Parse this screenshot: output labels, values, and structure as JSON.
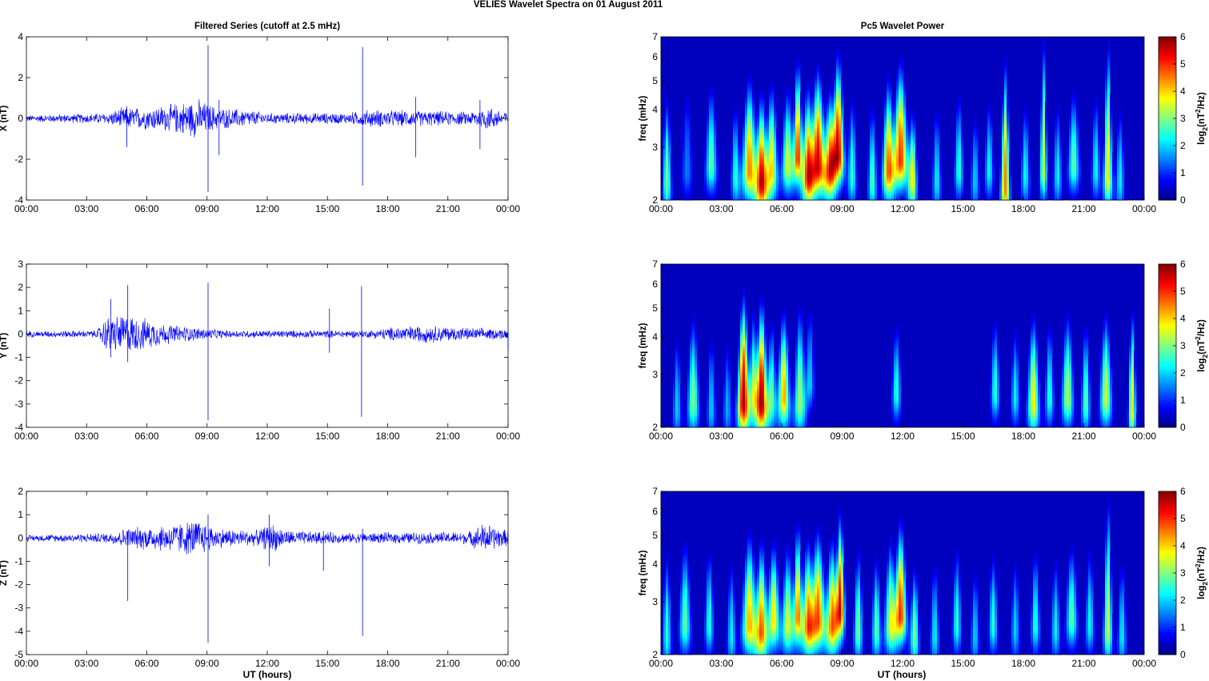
{
  "figure": {
    "title": "VELIES Wavelet Spectra on 01 August    2011",
    "left_title": "Filtered Series (cutoff at 2.5 mHz)",
    "right_title": "Pc5 Wavelet Power",
    "xlabel": "UT (hours)",
    "freq_label": "freq (mHz)",
    "colorbar_label_pre": "log",
    "colorbar_label_sub": "2",
    "colorbar_label_mid": "(nT",
    "colorbar_label_sup": "2",
    "colorbar_label_post": "/Hz)"
  },
  "colors": {
    "trace": "#0000ff",
    "background": "#ffffff",
    "axis": "#000000"
  },
  "chart_data": [
    {
      "type": "line",
      "component": "X",
      "ylabel": "X (nT)",
      "ylim": [
        -4,
        4
      ],
      "yticks": [
        "-4",
        "-2",
        "0",
        "2",
        "4"
      ],
      "xticks": [
        "00:00",
        "03:00",
        "06:00",
        "09:00",
        "12:00",
        "15:00",
        "18:00",
        "21:00",
        "00:00"
      ],
      "xlim_hours": [
        0,
        24
      ],
      "envelope": [
        [
          0,
          0.15
        ],
        [
          4,
          0.25
        ],
        [
          4.8,
          0.5
        ],
        [
          6,
          0.5
        ],
        [
          7,
          0.6
        ],
        [
          8.5,
          0.9
        ],
        [
          9.5,
          0.5
        ],
        [
          11,
          0.4
        ],
        [
          12,
          0.25
        ],
        [
          16,
          0.25
        ],
        [
          17,
          0.4
        ],
        [
          20,
          0.35
        ],
        [
          22,
          0.3
        ],
        [
          23,
          0.55
        ],
        [
          24,
          0.3
        ]
      ],
      "spikes": [
        [
          9.05,
          3.6,
          -3.6
        ],
        [
          16.75,
          3.5,
          -3.3
        ],
        [
          9.6,
          0.9,
          -1.8
        ],
        [
          19.4,
          1.05,
          -1.9
        ],
        [
          5.0,
          0.6,
          -1.4
        ],
        [
          22.6,
          0.9,
          -1.5
        ]
      ]
    },
    {
      "type": "line",
      "component": "Y",
      "ylabel": "Y (nT)",
      "ylim": [
        -4,
        3
      ],
      "yticks": [
        "-4",
        "-3",
        "-2",
        "-1",
        "0",
        "1",
        "2",
        "3"
      ],
      "xticks": [
        "00:00",
        "03:00",
        "06:00",
        "09:00",
        "12:00",
        "15:00",
        "18:00",
        "21:00",
        "00:00"
      ],
      "xlim_hours": [
        0,
        24
      ],
      "envelope": [
        [
          0,
          0.12
        ],
        [
          3.5,
          0.15
        ],
        [
          4,
          0.7
        ],
        [
          5,
          0.8
        ],
        [
          6,
          0.6
        ],
        [
          7,
          0.4
        ],
        [
          8,
          0.3
        ],
        [
          10,
          0.15
        ],
        [
          17,
          0.15
        ],
        [
          18.5,
          0.3
        ],
        [
          20,
          0.35
        ],
        [
          22,
          0.25
        ],
        [
          24,
          0.2
        ]
      ],
      "spikes": [
        [
          4.2,
          1.5,
          -1.0
        ],
        [
          5.05,
          2.1,
          -1.2
        ],
        [
          9.05,
          2.2,
          -3.7
        ],
        [
          16.7,
          2.05,
          -3.55
        ],
        [
          15.1,
          1.1,
          -0.8
        ],
        [
          24,
          0.1,
          -0.65
        ]
      ]
    },
    {
      "type": "line",
      "component": "Z",
      "ylabel": "Z (nT)",
      "ylim": [
        -5,
        2
      ],
      "yticks": [
        "-5",
        "-4",
        "-3",
        "-2",
        "-1",
        "0",
        "1",
        "2"
      ],
      "xticks": [
        "00:00",
        "03:00",
        "06:00",
        "09:00",
        "12:00",
        "15:00",
        "18:00",
        "21:00",
        "00:00"
      ],
      "xlim_hours": [
        0,
        24
      ],
      "envelope": [
        [
          0,
          0.12
        ],
        [
          4,
          0.2
        ],
        [
          5,
          0.4
        ],
        [
          7,
          0.55
        ],
        [
          8.5,
          0.75
        ],
        [
          9.5,
          0.4
        ],
        [
          11.5,
          0.3
        ],
        [
          12.2,
          0.6
        ],
        [
          13,
          0.3
        ],
        [
          16,
          0.2
        ],
        [
          22,
          0.25
        ],
        [
          22.8,
          0.6
        ],
        [
          24,
          0.3
        ]
      ],
      "spikes": [
        [
          5.05,
          0.3,
          -2.7
        ],
        [
          9.05,
          1.0,
          -4.5
        ],
        [
          16.75,
          0.4,
          -4.2
        ],
        [
          12.1,
          1.0,
          -1.2
        ],
        [
          14.8,
          0.3,
          -1.4
        ]
      ]
    },
    {
      "type": "heatmap",
      "component": "X",
      "ylabel": "freq (mHz)",
      "ylim_log2": [
        2,
        7
      ],
      "yticks": [
        "2",
        "3",
        "4",
        "5",
        "6",
        "7"
      ],
      "xticks": [
        "00:00",
        "03:00",
        "06:00",
        "09:00",
        "12:00",
        "15:00",
        "18:00",
        "21:00",
        "00:00"
      ],
      "clim": [
        0,
        6
      ],
      "cticks": [
        "0",
        "1",
        "2",
        "3",
        "4",
        "5",
        "6"
      ],
      "blobs": [
        [
          0.3,
          2.3,
          3.0,
          0.15,
          1.0,
          2
        ],
        [
          1.3,
          2.5,
          1.5,
          0.2,
          1.2,
          4
        ],
        [
          2.5,
          2.6,
          2.8,
          0.2,
          1.1,
          4
        ],
        [
          3.7,
          2.4,
          2.4,
          0.15,
          0.9,
          3
        ],
        [
          4.4,
          2.5,
          4.5,
          0.25,
          1.2,
          5
        ],
        [
          5.0,
          2.3,
          5.2,
          0.2,
          1.0,
          6
        ],
        [
          5.5,
          2.5,
          4.0,
          0.2,
          1.1,
          4
        ],
        [
          6.3,
          2.6,
          3.5,
          0.2,
          1.0,
          5
        ],
        [
          6.8,
          2.8,
          5.0,
          0.15,
          1.4,
          4
        ],
        [
          7.3,
          2.4,
          4.8,
          0.2,
          1.1,
          5
        ],
        [
          7.8,
          2.6,
          5.5,
          0.25,
          1.3,
          6
        ],
        [
          8.4,
          2.5,
          4.5,
          0.2,
          1.0,
          4
        ],
        [
          8.8,
          2.8,
          5.5,
          0.2,
          1.5,
          4
        ],
        [
          9.5,
          2.4,
          2.5,
          0.15,
          1.0,
          5
        ],
        [
          10.5,
          2.3,
          2.7,
          0.15,
          0.9,
          4
        ],
        [
          11.3,
          2.5,
          4.5,
          0.2,
          1.2,
          5
        ],
        [
          11.9,
          2.7,
          5.0,
          0.25,
          1.4,
          4
        ],
        [
          12.5,
          2.3,
          3.5,
          0.15,
          0.8,
          3
        ],
        [
          13.7,
          2.3,
          2.2,
          0.15,
          0.9,
          3
        ],
        [
          14.8,
          2.5,
          2.5,
          0.15,
          1.0,
          4
        ],
        [
          15.6,
          2.3,
          2.0,
          0.15,
          0.8,
          3
        ],
        [
          16.3,
          2.5,
          2.3,
          0.15,
          0.9,
          3
        ],
        [
          17.1,
          2.2,
          4.5,
          0.15,
          1.6,
          5
        ],
        [
          18.1,
          2.4,
          2.3,
          0.15,
          0.9,
          3
        ],
        [
          19.0,
          2.5,
          3.5,
          0.12,
          2.0,
          6
        ],
        [
          19.7,
          2.4,
          2.2,
          0.15,
          0.9,
          3
        ],
        [
          20.5,
          2.6,
          2.8,
          0.2,
          1.0,
          4
        ],
        [
          21.6,
          2.5,
          2.3,
          0.15,
          1.0,
          3
        ],
        [
          22.2,
          2.4,
          4.0,
          0.15,
          2.0,
          6
        ],
        [
          22.8,
          2.3,
          2.2,
          0.15,
          0.9,
          3
        ]
      ]
    },
    {
      "type": "heatmap",
      "component": "Y",
      "ylabel": "freq (mHz)",
      "ylim_log2": [
        2,
        7
      ],
      "yticks": [
        "2",
        "3",
        "4",
        "5",
        "6",
        "7"
      ],
      "xticks": [
        "00:00",
        "03:00",
        "06:00",
        "09:00",
        "12:00",
        "15:00",
        "18:00",
        "21:00",
        "00:00"
      ],
      "clim": [
        0,
        6
      ],
      "cticks": [
        "0",
        "1",
        "2",
        "3",
        "4",
        "5",
        "6"
      ],
      "blobs": [
        [
          0.8,
          2.3,
          2.0,
          0.15,
          0.9,
          3
        ],
        [
          1.6,
          2.4,
          3.0,
          0.2,
          1.1,
          3
        ],
        [
          2.5,
          2.3,
          2.0,
          0.15,
          0.9,
          3
        ],
        [
          3.3,
          2.3,
          1.8,
          0.15,
          0.8,
          3
        ],
        [
          4.1,
          2.4,
          5.8,
          0.2,
          1.4,
          6
        ],
        [
          4.6,
          2.6,
          3.0,
          0.15,
          1.1,
          5
        ],
        [
          5.0,
          2.4,
          5.8,
          0.2,
          1.3,
          6
        ],
        [
          5.5,
          2.5,
          2.8,
          0.15,
          1.0,
          4
        ],
        [
          6.1,
          2.5,
          4.3,
          0.2,
          1.1,
          5
        ],
        [
          6.9,
          2.4,
          3.2,
          0.2,
          1.3,
          4
        ],
        [
          7.4,
          2.8,
          2.0,
          0.15,
          1.2,
          3
        ],
        [
          11.7,
          2.6,
          2.5,
          0.15,
          0.9,
          3
        ],
        [
          16.6,
          2.6,
          2.5,
          0.15,
          1.0,
          3
        ],
        [
          17.6,
          2.5,
          2.2,
          0.15,
          0.9,
          3
        ],
        [
          18.5,
          2.4,
          3.8,
          0.2,
          1.1,
          4
        ],
        [
          19.3,
          2.5,
          2.5,
          0.15,
          1.0,
          4
        ],
        [
          20.2,
          2.5,
          3.3,
          0.2,
          1.1,
          4
        ],
        [
          21.1,
          2.4,
          2.8,
          0.15,
          1.0,
          4
        ],
        [
          22.1,
          2.5,
          3.5,
          0.2,
          1.1,
          4
        ],
        [
          23.4,
          2.3,
          4.0,
          0.12,
          1.2,
          4
        ]
      ]
    },
    {
      "type": "heatmap",
      "component": "Z",
      "ylabel": "freq (mHz)",
      "ylim_log2": [
        2,
        7
      ],
      "yticks": [
        "2",
        "3",
        "4",
        "5",
        "6",
        "7"
      ],
      "xticks": [
        "00:00",
        "03:00",
        "06:00",
        "09:00",
        "12:00",
        "15:00",
        "18:00",
        "21:00",
        "00:00"
      ],
      "clim": [
        0,
        6
      ],
      "cticks": [
        "0",
        "1",
        "2",
        "3",
        "4",
        "5",
        "6"
      ],
      "blobs": [
        [
          0.3,
          2.3,
          2.5,
          0.15,
          1.0,
          3
        ],
        [
          1.2,
          2.5,
          2.8,
          0.2,
          1.1,
          3
        ],
        [
          2.4,
          2.5,
          2.5,
          0.15,
          1.0,
          3
        ],
        [
          3.5,
          2.3,
          2.2,
          0.15,
          0.9,
          3
        ],
        [
          4.4,
          2.5,
          4.2,
          0.25,
          1.2,
          4
        ],
        [
          5.0,
          2.4,
          4.5,
          0.2,
          1.1,
          5
        ],
        [
          5.6,
          2.6,
          4.0,
          0.2,
          1.0,
          4
        ],
        [
          6.3,
          2.5,
          3.5,
          0.2,
          1.0,
          5
        ],
        [
          6.8,
          2.7,
          4.5,
          0.15,
          1.3,
          4
        ],
        [
          7.3,
          2.5,
          4.3,
          0.2,
          1.1,
          5
        ],
        [
          7.8,
          2.6,
          4.8,
          0.25,
          1.2,
          5
        ],
        [
          8.5,
          2.5,
          4.5,
          0.2,
          1.1,
          4
        ],
        [
          8.9,
          2.8,
          5.3,
          0.15,
          1.4,
          4
        ],
        [
          9.8,
          2.4,
          3.0,
          0.15,
          1.0,
          4
        ],
        [
          10.7,
          2.4,
          2.8,
          0.15,
          0.9,
          3
        ],
        [
          11.4,
          2.5,
          3.5,
          0.2,
          1.1,
          4
        ],
        [
          11.9,
          2.7,
          5.0,
          0.2,
          1.3,
          5
        ],
        [
          12.6,
          2.3,
          3.0,
          0.15,
          0.8,
          3
        ],
        [
          13.6,
          2.3,
          2.2,
          0.15,
          0.9,
          3
        ],
        [
          14.7,
          2.5,
          2.5,
          0.15,
          1.0,
          3
        ],
        [
          15.6,
          2.3,
          2.0,
          0.15,
          0.8,
          3
        ],
        [
          16.5,
          2.5,
          2.5,
          0.15,
          0.9,
          3
        ],
        [
          17.6,
          2.4,
          2.0,
          0.15,
          0.9,
          3
        ],
        [
          18.6,
          2.5,
          2.5,
          0.15,
          1.0,
          3
        ],
        [
          19.6,
          2.4,
          2.2,
          0.15,
          0.9,
          3
        ],
        [
          20.4,
          2.6,
          2.8,
          0.2,
          1.0,
          4
        ],
        [
          21.3,
          2.5,
          2.3,
          0.15,
          1.0,
          3
        ],
        [
          22.2,
          2.4,
          3.5,
          0.15,
          2.0,
          6
        ],
        [
          22.9,
          2.3,
          2.2,
          0.15,
          0.9,
          3
        ]
      ]
    }
  ]
}
